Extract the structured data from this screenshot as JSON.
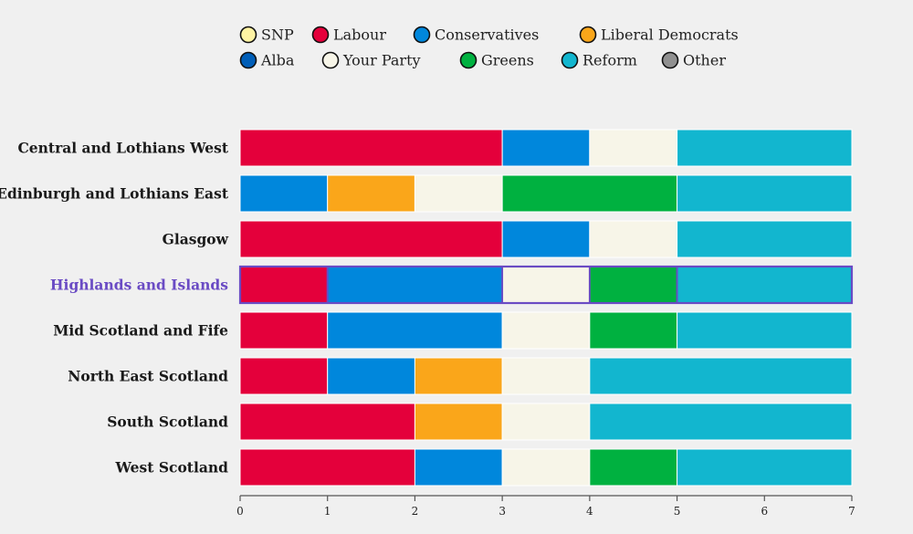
{
  "chart_data": {
    "type": "bar",
    "orientation": "horizontal",
    "stacked": true,
    "xlim": [
      0,
      7
    ],
    "x_ticks": [
      "0",
      "1",
      "2",
      "3",
      "4",
      "5",
      "6",
      "7"
    ],
    "highlight_region": "Highlands and Islands",
    "legend": [
      {
        "name": "SNP",
        "color": "#fff3a3"
      },
      {
        "name": "Labour",
        "color": "#e4003b"
      },
      {
        "name": "Conservatives",
        "color": "#0087dc"
      },
      {
        "name": "Liberal Democrats",
        "color": "#faa61a"
      },
      {
        "name": "Alba",
        "color": "#005eb8"
      },
      {
        "name": "Your Party",
        "color": "#f7f5e8"
      },
      {
        "name": "Greens",
        "color": "#00b140"
      },
      {
        "name": "Reform",
        "color": "#12b6cf"
      },
      {
        "name": "Other",
        "color": "#909090"
      }
    ],
    "categories": [
      "Central and Lothians West",
      "Edinburgh and Lothians East",
      "Glasgow",
      "Highlands and Islands",
      "Mid Scotland and Fife",
      "North East Scotland",
      "South Scotland",
      "West Scotland"
    ],
    "series": [
      {
        "name": "SNP",
        "values": [
          0,
          0,
          0,
          0,
          0,
          0,
          0,
          0
        ]
      },
      {
        "name": "Labour",
        "values": [
          3,
          0,
          3,
          1,
          1,
          1,
          2,
          2
        ]
      },
      {
        "name": "Conservatives",
        "values": [
          1,
          1,
          1,
          2,
          2,
          1,
          0,
          1
        ]
      },
      {
        "name": "Liberal Democrats",
        "values": [
          0,
          1,
          0,
          0,
          0,
          1,
          1,
          0
        ]
      },
      {
        "name": "Alba",
        "values": [
          0,
          0,
          0,
          0,
          0,
          0,
          0,
          0
        ]
      },
      {
        "name": "Your Party",
        "values": [
          1,
          1,
          1,
          1,
          1,
          1,
          1,
          1
        ]
      },
      {
        "name": "Greens",
        "values": [
          0,
          2,
          0,
          1,
          1,
          0,
          0,
          1
        ]
      },
      {
        "name": "Reform",
        "values": [
          2,
          2,
          2,
          2,
          2,
          3,
          3,
          2
        ]
      },
      {
        "name": "Other",
        "values": [
          0,
          0,
          0,
          0,
          0,
          0,
          0,
          0
        ]
      }
    ]
  },
  "colors": {
    "highlight": "#6a4bc4",
    "axis": "#555555",
    "segment_border": "#ffffff"
  }
}
